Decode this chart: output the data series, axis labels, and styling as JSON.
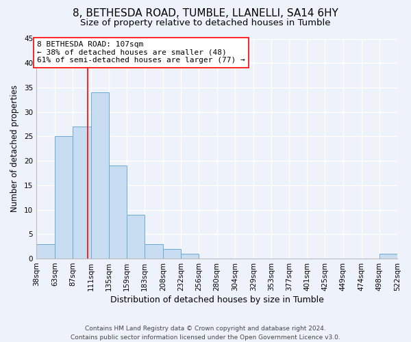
{
  "title": "8, BETHESDA ROAD, TUMBLE, LLANELLI, SA14 6HY",
  "subtitle": "Size of property relative to detached houses in Tumble",
  "xlabel": "Distribution of detached houses by size in Tumble",
  "ylabel": "Number of detached properties",
  "bin_edges": [
    38,
    63,
    87,
    111,
    135,
    159,
    183,
    208,
    232,
    256,
    280,
    304,
    329,
    353,
    377,
    401,
    425,
    449,
    474,
    498,
    522
  ],
  "bar_heights": [
    3,
    25,
    27,
    34,
    19,
    9,
    3,
    2,
    1,
    0,
    0,
    0,
    0,
    0,
    0,
    0,
    0,
    0,
    0,
    1
  ],
  "bar_color": "#c9ddf2",
  "bar_edge_color": "#6aaad4",
  "vline_x": 107,
  "vline_color": "red",
  "ylim": [
    0,
    45
  ],
  "yticks": [
    0,
    5,
    10,
    15,
    20,
    25,
    30,
    35,
    40,
    45
  ],
  "annotation_title": "8 BETHESDA ROAD: 107sqm",
  "annotation_line1": "← 38% of detached houses are smaller (48)",
  "annotation_line2": "61% of semi-detached houses are larger (77) →",
  "annotation_box_color": "#ffffff",
  "annotation_box_edge_color": "red",
  "footer_line1": "Contains HM Land Registry data © Crown copyright and database right 2024.",
  "footer_line2": "Contains public sector information licensed under the Open Government Licence v3.0.",
  "background_color": "#eef2fa",
  "grid_color": "#ffffff",
  "title_fontsize": 11,
  "subtitle_fontsize": 9.5,
  "xlabel_fontsize": 9,
  "ylabel_fontsize": 8.5,
  "annotation_fontsize": 8,
  "tick_fontsize": 7.5,
  "footer_fontsize": 6.5
}
